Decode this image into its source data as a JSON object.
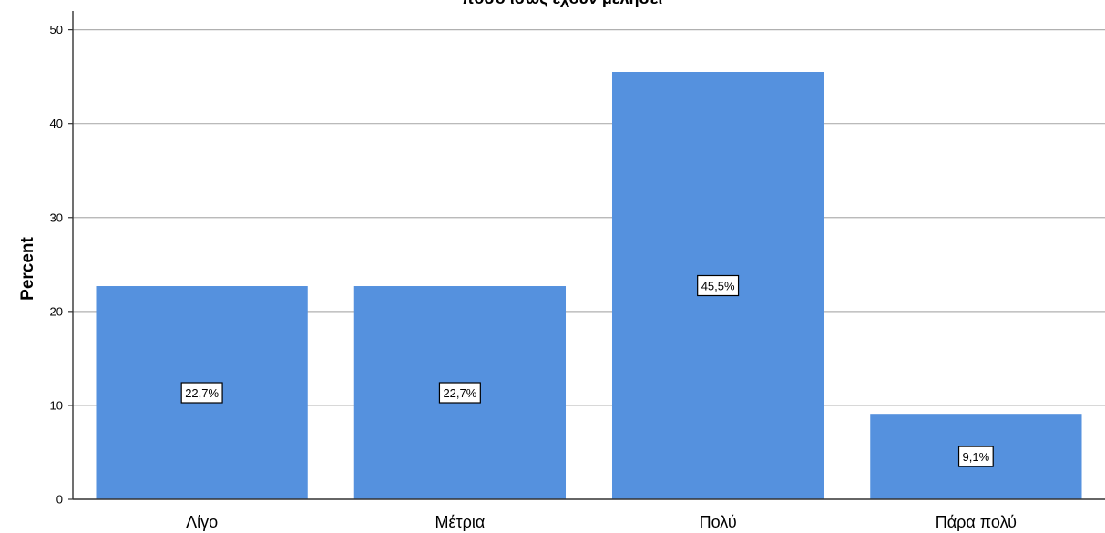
{
  "chart_data": {
    "type": "bar",
    "title": "πόσο ίσως έχουν μελήσει",
    "xlabel": "",
    "ylabel": "Percent",
    "categories": [
      "Λίγο",
      "Μέτρια",
      "Πολύ",
      "Πάρα πολύ"
    ],
    "values": [
      22.7,
      22.7,
      45.5,
      9.1
    ],
    "data_labels": [
      "22,7%",
      "22,7%",
      "45,5%",
      "9,1%"
    ],
    "ylim": [
      0,
      52
    ],
    "yticks": [
      0,
      10,
      20,
      30,
      40,
      50
    ],
    "grid": true,
    "legend": "none",
    "colors": {
      "bar": "#5591DE",
      "grid": "#B0B0B0",
      "axis": "#333333",
      "label_box_border": "#000000",
      "label_box_fill": "#FFFFFF"
    }
  }
}
